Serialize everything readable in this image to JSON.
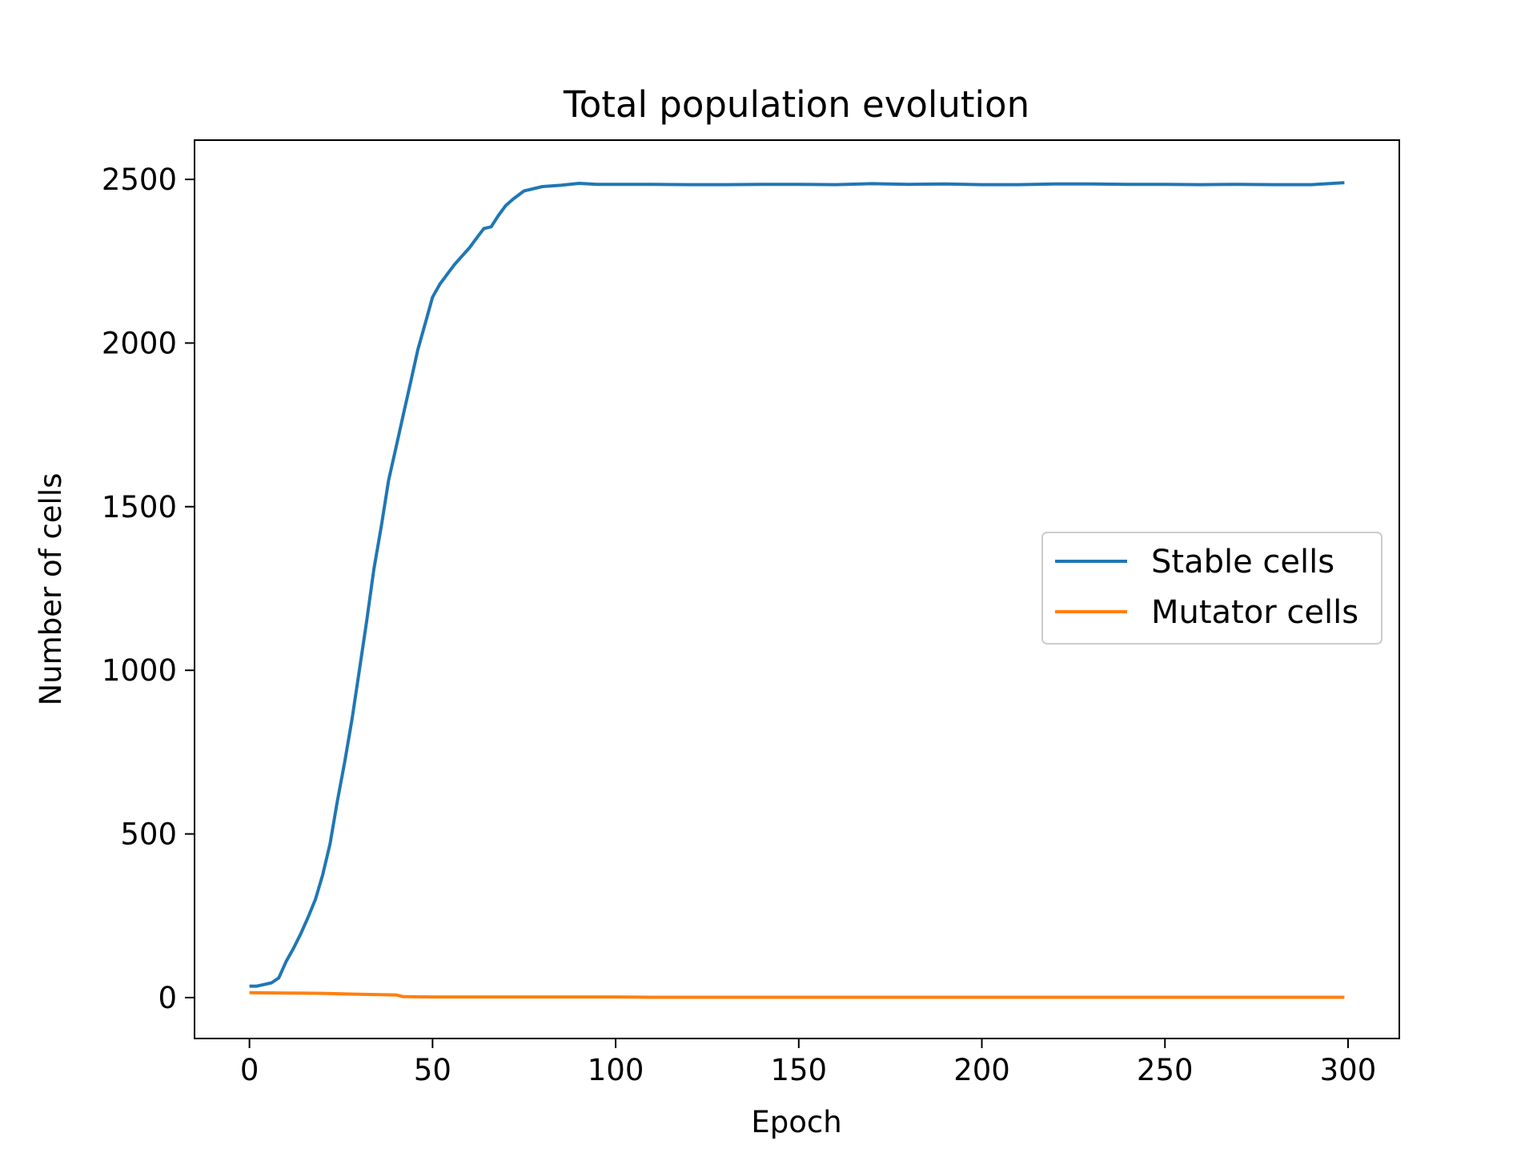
{
  "chart_data": {
    "type": "line",
    "title": "Total population evolution",
    "xlabel": "Epoch",
    "ylabel": "Number of cells",
    "xlim": [
      -15,
      314
    ],
    "ylim": [
      -125,
      2620
    ],
    "xticks": [
      0,
      50,
      100,
      150,
      200,
      250,
      300
    ],
    "yticks": [
      0,
      500,
      1000,
      1500,
      2000,
      2500
    ],
    "xtick_labels": [
      "0",
      "50",
      "100",
      "150",
      "200",
      "250",
      "300"
    ],
    "ytick_labels": [
      "0",
      "500",
      "1000",
      "1500",
      "2000",
      "2500"
    ],
    "grid": false,
    "legend_position": "center-right",
    "series": [
      {
        "name": "Stable cells",
        "color": "#1f77b4",
        "points": [
          [
            0,
            35
          ],
          [
            2,
            35
          ],
          [
            4,
            40
          ],
          [
            6,
            45
          ],
          [
            8,
            60
          ],
          [
            10,
            110
          ],
          [
            12,
            150
          ],
          [
            14,
            195
          ],
          [
            16,
            245
          ],
          [
            18,
            300
          ],
          [
            20,
            375
          ],
          [
            22,
            470
          ],
          [
            24,
            600
          ],
          [
            26,
            720
          ],
          [
            28,
            850
          ],
          [
            30,
            1000
          ],
          [
            32,
            1150
          ],
          [
            34,
            1310
          ],
          [
            36,
            1440
          ],
          [
            38,
            1580
          ],
          [
            40,
            1680
          ],
          [
            42,
            1780
          ],
          [
            44,
            1880
          ],
          [
            46,
            1980
          ],
          [
            48,
            2060
          ],
          [
            50,
            2140
          ],
          [
            52,
            2180
          ],
          [
            54,
            2210
          ],
          [
            56,
            2240
          ],
          [
            58,
            2265
          ],
          [
            60,
            2290
          ],
          [
            62,
            2320
          ],
          [
            64,
            2350
          ],
          [
            66,
            2355
          ],
          [
            68,
            2390
          ],
          [
            70,
            2420
          ],
          [
            72,
            2440
          ],
          [
            75,
            2465
          ],
          [
            80,
            2478
          ],
          [
            85,
            2482
          ],
          [
            90,
            2488
          ],
          [
            95,
            2485
          ],
          [
            100,
            2485
          ],
          [
            110,
            2485
          ],
          [
            120,
            2484
          ],
          [
            130,
            2484
          ],
          [
            140,
            2485
          ],
          [
            150,
            2485
          ],
          [
            160,
            2484
          ],
          [
            170,
            2487
          ],
          [
            180,
            2485
          ],
          [
            190,
            2486
          ],
          [
            200,
            2484
          ],
          [
            210,
            2484
          ],
          [
            220,
            2486
          ],
          [
            230,
            2486
          ],
          [
            240,
            2485
          ],
          [
            250,
            2485
          ],
          [
            260,
            2484
          ],
          [
            270,
            2485
          ],
          [
            280,
            2484
          ],
          [
            290,
            2484
          ],
          [
            299,
            2490
          ]
        ]
      },
      {
        "name": "Mutator cells",
        "color": "#ff7f0e",
        "points": [
          [
            0,
            15
          ],
          [
            10,
            14
          ],
          [
            20,
            13
          ],
          [
            30,
            10
          ],
          [
            40,
            8
          ],
          [
            42,
            3
          ],
          [
            50,
            2
          ],
          [
            75,
            2
          ],
          [
            100,
            2
          ],
          [
            110,
            1
          ],
          [
            150,
            1
          ],
          [
            200,
            1
          ],
          [
            250,
            1
          ],
          [
            299,
            1
          ]
        ]
      }
    ]
  }
}
